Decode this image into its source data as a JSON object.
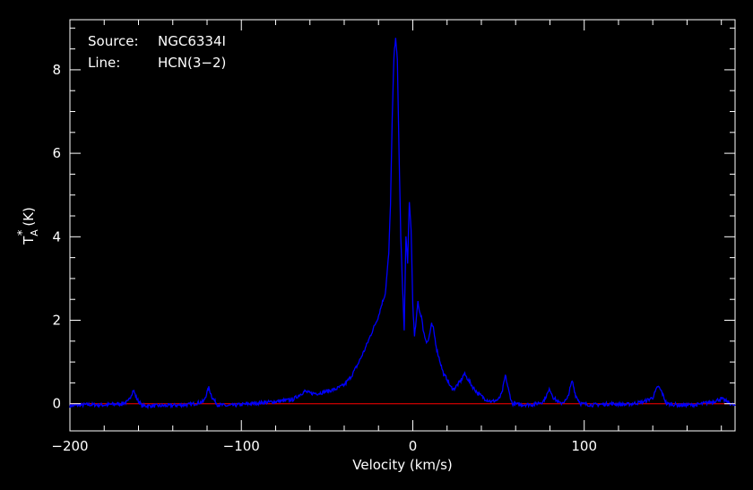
{
  "chart_data": {
    "type": "line",
    "annotations": {
      "source_key": "Source:",
      "source_value": "NGC6334I",
      "line_key": "Line:",
      "line_value": "HCN(3−2)"
    },
    "xlabel": "Velocity (km/s)",
    "ylabel": "T",
    "ylabel_sub": "A",
    "ylabel_sup": "*",
    "ylabel_unit": "(K)",
    "xlim": [
      -200,
      188
    ],
    "ylim": [
      -0.65,
      9.2
    ],
    "x_ticks": [
      {
        "value": -200,
        "label": "−200"
      },
      {
        "value": -100,
        "label": "−100"
      },
      {
        "value": 0,
        "label": "0"
      },
      {
        "value": 100,
        "label": "100"
      }
    ],
    "y_ticks": [
      {
        "value": 0,
        "label": "0"
      },
      {
        "value": 2,
        "label": "2"
      },
      {
        "value": 4,
        "label": "4"
      },
      {
        "value": 6,
        "label": "6"
      },
      {
        "value": 8,
        "label": "8"
      }
    ],
    "grid": false,
    "background_color": "#000000",
    "axis_color": "#ffffff",
    "series": [
      {
        "color": "#0000ff",
        "x": [
          -200,
          -190,
          -180,
          -170,
          -166,
          -163,
          -161,
          -158,
          -150,
          -140,
          -130,
          -122,
          -119,
          -117,
          -114,
          -108,
          -100,
          -90,
          -80,
          -70,
          -63,
          -60,
          -55,
          -50,
          -45,
          -40,
          -36,
          -32,
          -28,
          -24,
          -22,
          -20,
          -18,
          -16,
          -14,
          -13,
          -12,
          -11,
          -10,
          -9,
          -8,
          -7,
          -6,
          -5,
          -4,
          -3,
          -2,
          -1,
          0,
          1,
          2,
          3,
          4,
          5,
          6,
          7,
          8,
          9,
          10,
          11,
          12,
          14,
          16,
          18,
          20,
          22,
          24,
          26,
          28,
          30,
          32,
          35,
          38,
          42,
          46,
          50,
          52,
          54,
          56,
          58,
          62,
          70,
          76,
          80,
          82,
          86,
          90,
          93,
          95,
          98,
          105,
          115,
          125,
          135,
          140,
          143,
          145,
          148,
          155,
          165,
          175,
          180,
          188
        ],
        "y": [
          -0.05,
          -0.02,
          -0.03,
          0.0,
          0.05,
          0.33,
          0.12,
          -0.05,
          -0.05,
          -0.04,
          -0.02,
          0.05,
          0.38,
          0.15,
          -0.02,
          -0.05,
          -0.02,
          0.02,
          0.05,
          0.1,
          0.3,
          0.25,
          0.25,
          0.3,
          0.35,
          0.45,
          0.65,
          0.95,
          1.3,
          1.7,
          1.9,
          2.1,
          2.4,
          2.65,
          3.6,
          4.8,
          6.8,
          8.3,
          8.8,
          8.2,
          6.0,
          4.0,
          2.8,
          1.8,
          4.0,
          3.4,
          4.8,
          4.2,
          2.4,
          1.6,
          2.0,
          2.45,
          2.2,
          2.1,
          1.8,
          1.6,
          1.5,
          1.5,
          1.7,
          1.9,
          1.8,
          1.3,
          1.0,
          0.7,
          0.6,
          0.4,
          0.35,
          0.45,
          0.55,
          0.72,
          0.6,
          0.4,
          0.25,
          0.12,
          0.05,
          0.1,
          0.25,
          0.68,
          0.3,
          0.0,
          -0.02,
          -0.02,
          0.05,
          0.35,
          0.15,
          0.0,
          0.1,
          0.55,
          0.2,
          0.0,
          -0.03,
          0.0,
          -0.02,
          0.05,
          0.15,
          0.42,
          0.3,
          0.0,
          -0.03,
          -0.03,
          0.05,
          0.12,
          -0.05
        ]
      },
      {
        "color": "#ff0000",
        "x": [
          -200,
          188
        ],
        "y": [
          0,
          0
        ]
      }
    ]
  }
}
